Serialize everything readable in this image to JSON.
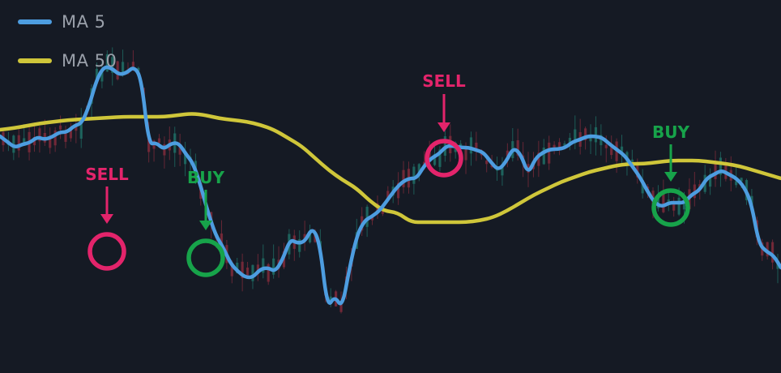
{
  "chart_data": {
    "type": "line",
    "background": "#151a24",
    "series": [
      {
        "name": "MA 5",
        "color": "#4d9de0",
        "values": [
          292,
          285,
          278,
          282,
          284,
          291,
          288,
          291,
          297,
          297,
          305,
          308,
          330,
          362,
          378,
          376,
          368,
          370,
          378,
          364,
          282,
          284,
          276,
          283,
          284,
          270,
          258,
          230,
          197,
          170,
          155,
          135,
          125,
          118,
          118,
          128,
          130,
          125,
          140,
          165,
          160,
          162,
          180,
          160,
          80,
          95,
          80,
          130,
          170,
          188,
          193,
          200,
          212,
          225,
          235,
          240,
          240,
          255,
          265,
          270,
          280,
          280,
          278,
          278,
          275,
          272,
          260,
          250,
          260,
          278,
          270,
          245,
          265,
          272,
          276,
          276,
          278,
          285,
          288,
          292,
          292,
          290,
          282,
          275,
          268,
          255,
          242,
          225,
          210,
          205,
          210,
          210,
          210,
          220,
          225,
          240,
          245,
          250,
          245,
          240,
          230,
          210,
          160,
          150,
          145,
          130
        ]
      },
      {
        "name": "MA 50",
        "color": "#cfc63a",
        "values": [
          300,
          302,
          305,
          308,
          310,
          312,
          313,
          314,
          315,
          316,
          316,
          316,
          316,
          318,
          320,
          318,
          314,
          312,
          310,
          306,
          300,
          290,
          280,
          265,
          250,
          238,
          228,
          212,
          200,
          198,
          186,
          186,
          186,
          186,
          186,
          188,
          192,
          200,
          210,
          220,
          228,
          236,
          242,
          248,
          252,
          256,
          258,
          258,
          260,
          262,
          262,
          262,
          260,
          258,
          255,
          250,
          245,
          240
        ]
      }
    ],
    "signals": [
      {
        "label": "SELL",
        "color": "#e3246b"
      },
      {
        "label": "BUY",
        "color": "#17a34a"
      },
      {
        "label": "SELL",
        "color": "#e3246b"
      },
      {
        "label": "BUY",
        "color": "#17a34a"
      }
    ],
    "grid": false
  },
  "legend": [
    {
      "label": "MA 5",
      "color": "#4d9de0"
    },
    {
      "label": "MA 50",
      "color": "#cfc63a"
    }
  ]
}
